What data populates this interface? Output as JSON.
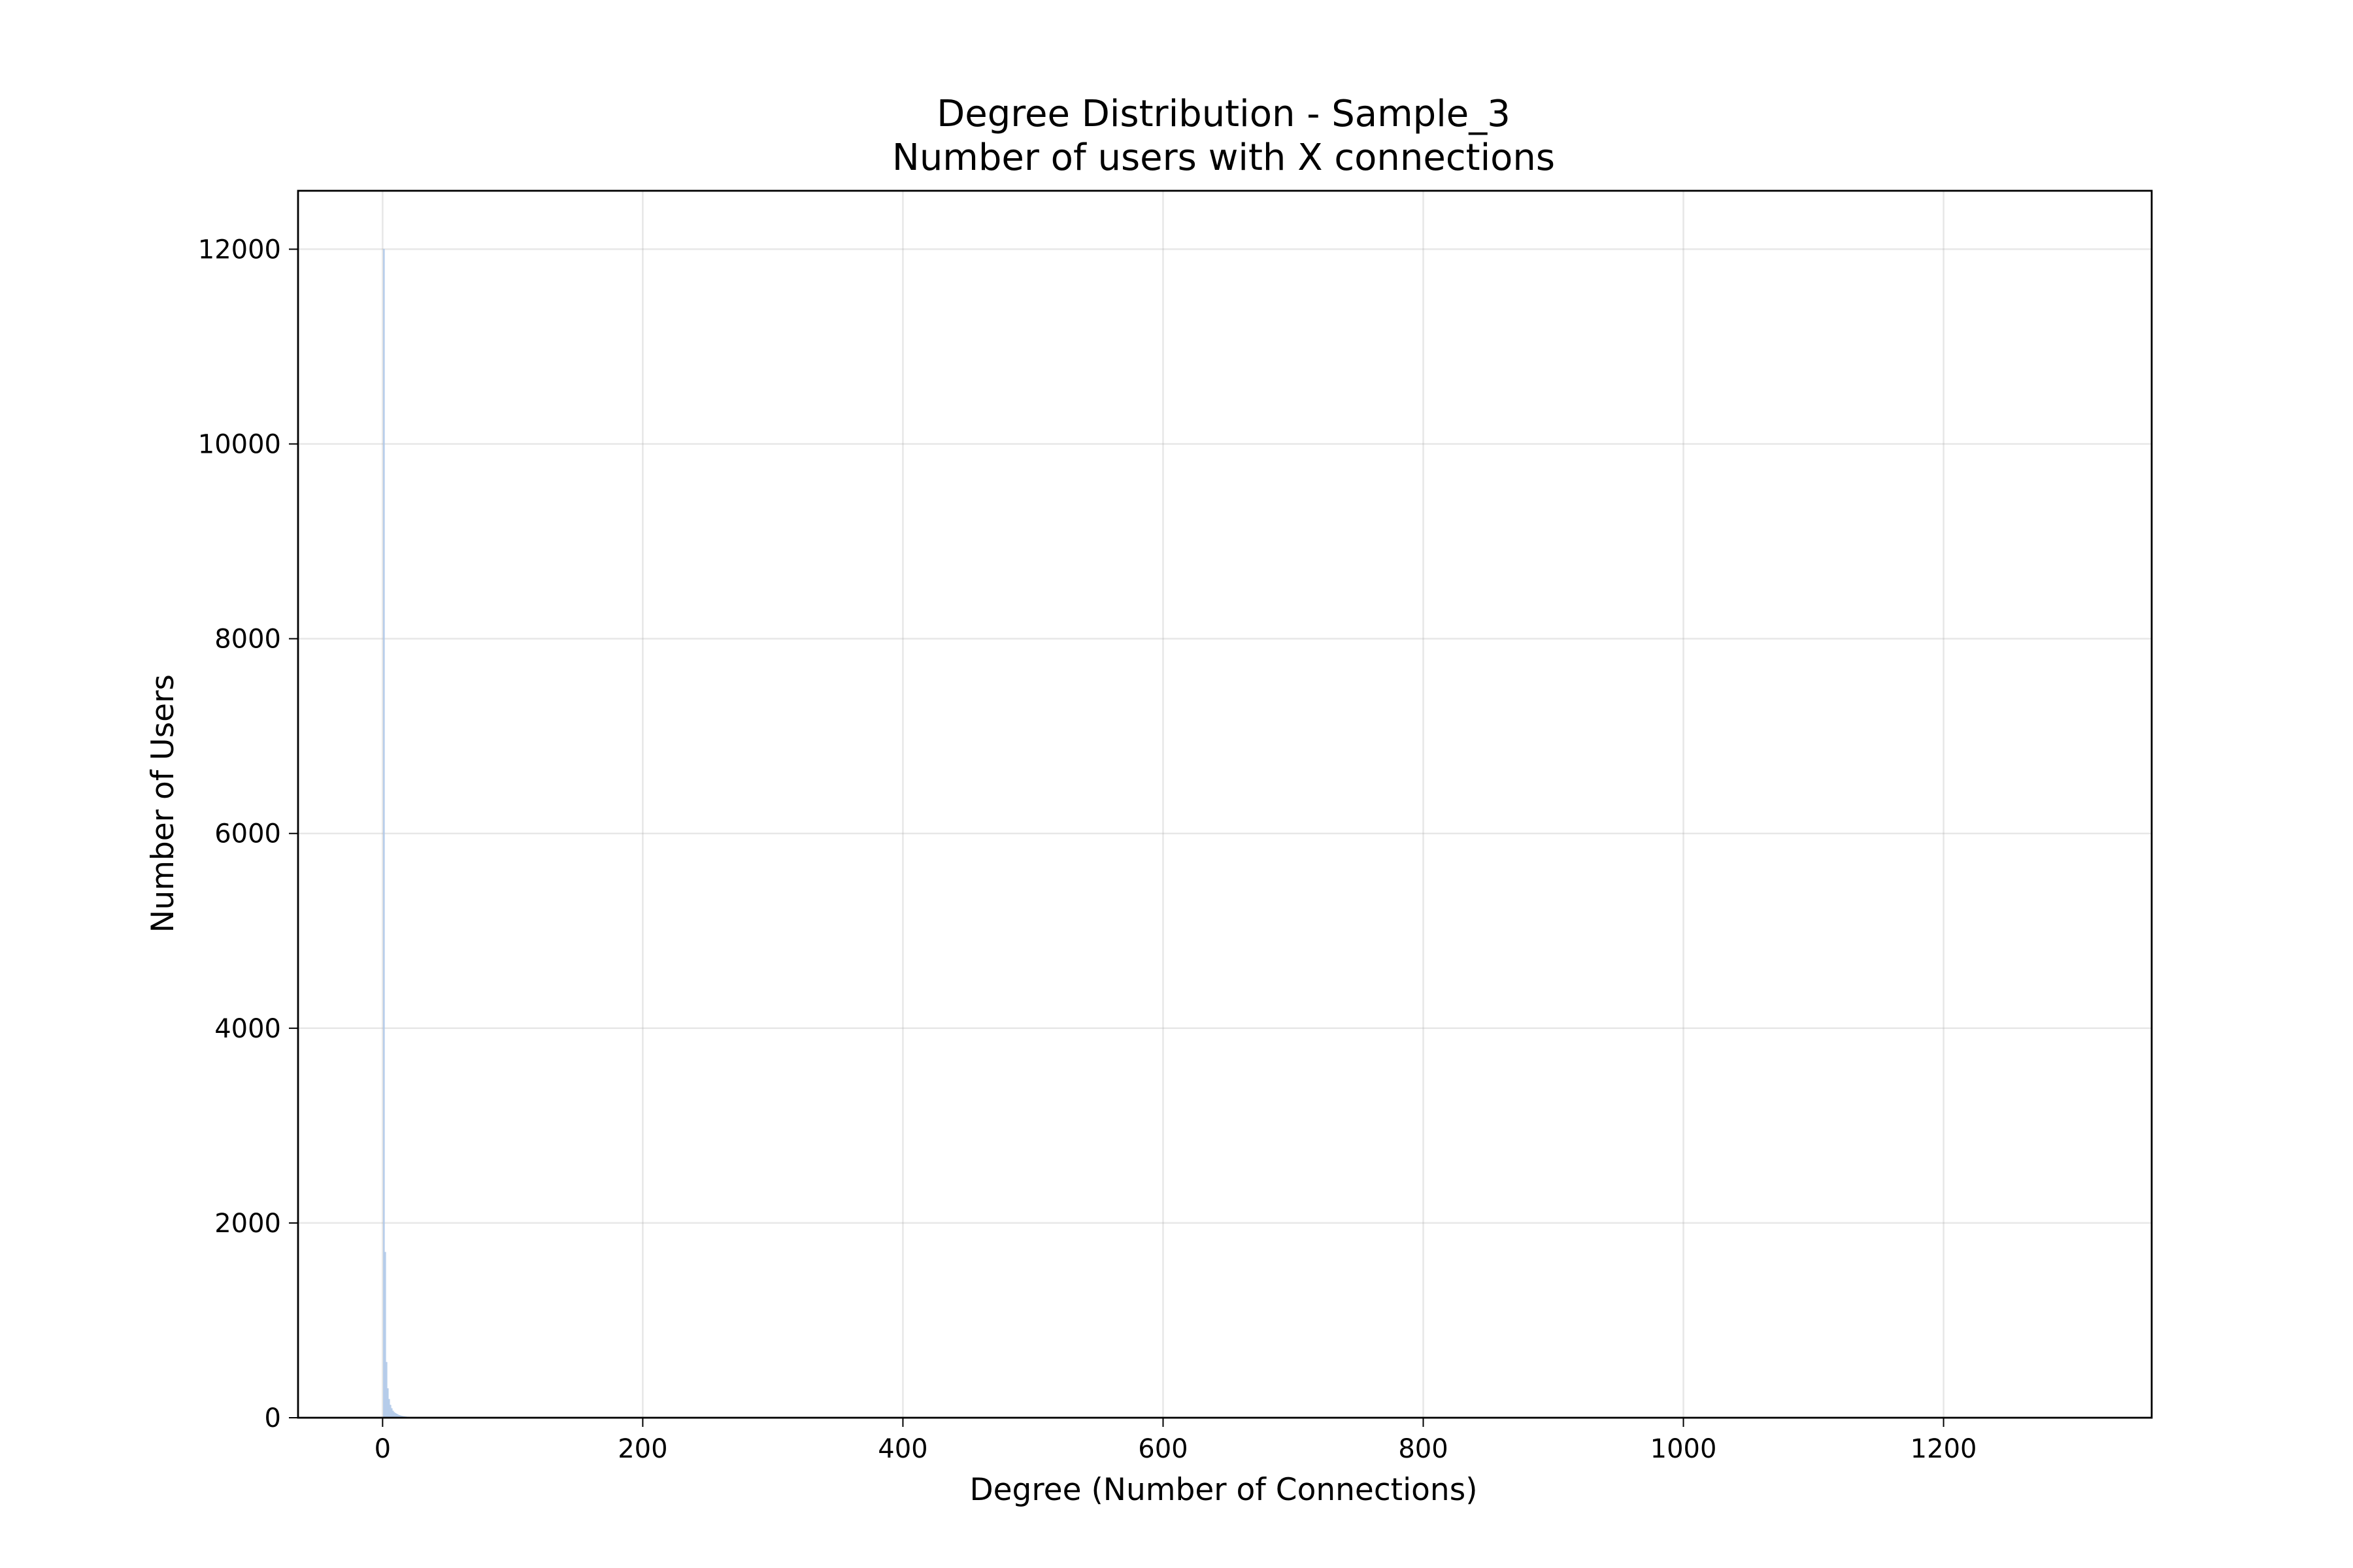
{
  "chart_data": {
    "type": "bar",
    "title": "Degree Distribution - Sample_3",
    "subtitle": "Number of users with X connections",
    "xlabel": "Degree (Number of Connections)",
    "ylabel": "Number of Users",
    "xlim": [
      -65,
      1360
    ],
    "ylim": [
      0,
      12600
    ],
    "xticks": [
      0,
      200,
      400,
      600,
      800,
      1000,
      1200
    ],
    "xtick_labels": [
      "0",
      "200",
      "400",
      "600",
      "800",
      "1000",
      "1200"
    ],
    "yticks": [
      0,
      2000,
      4000,
      6000,
      8000,
      10000,
      12000
    ],
    "ytick_labels": [
      "0",
      "2000",
      "4000",
      "6000",
      "8000",
      "10000",
      "12000"
    ],
    "grid": true,
    "bar_color": "#aec7e8",
    "bars": {
      "x": [
        1,
        2,
        3,
        4,
        5,
        6,
        7,
        8,
        9,
        10,
        11,
        12,
        13,
        14,
        15,
        16,
        17,
        18,
        19,
        20,
        22,
        25,
        28
      ],
      "y": [
        12000,
        1700,
        570,
        300,
        190,
        130,
        95,
        70,
        55,
        45,
        38,
        30,
        25,
        20,
        17,
        14,
        12,
        10,
        8,
        7,
        5,
        3,
        2
      ]
    }
  }
}
